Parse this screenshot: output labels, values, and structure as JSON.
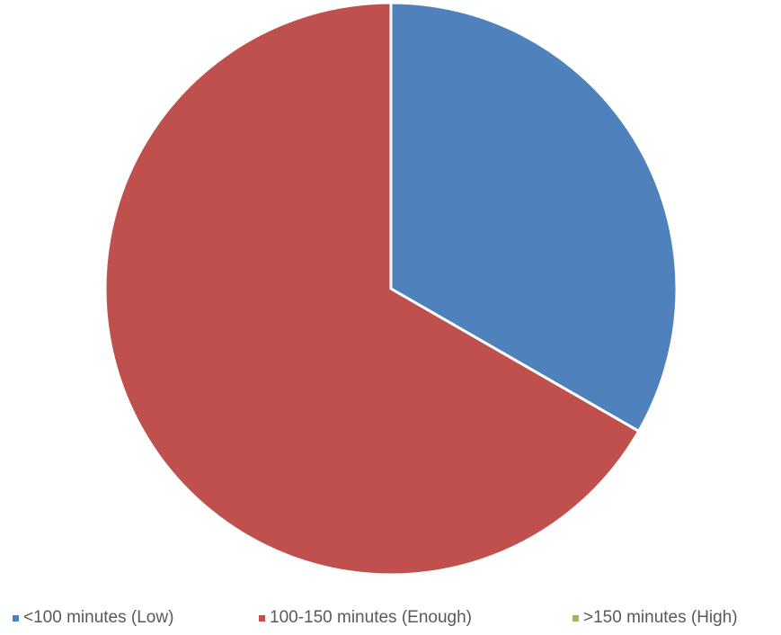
{
  "chart_data": {
    "type": "pie",
    "title": "",
    "slices": [
      {
        "label": "<100 minutes (Low)",
        "value": 33.3,
        "color": "#4F81BD"
      },
      {
        "label": "100-150 minutes (Enough)",
        "value": 66.7,
        "color": "#C0504D"
      },
      {
        "label": ">150 minutes (High)",
        "value": 0,
        "color": "#9BBB59"
      }
    ],
    "legend_position": "bottom",
    "start_angle_deg": 0,
    "direction": "clockwise"
  }
}
